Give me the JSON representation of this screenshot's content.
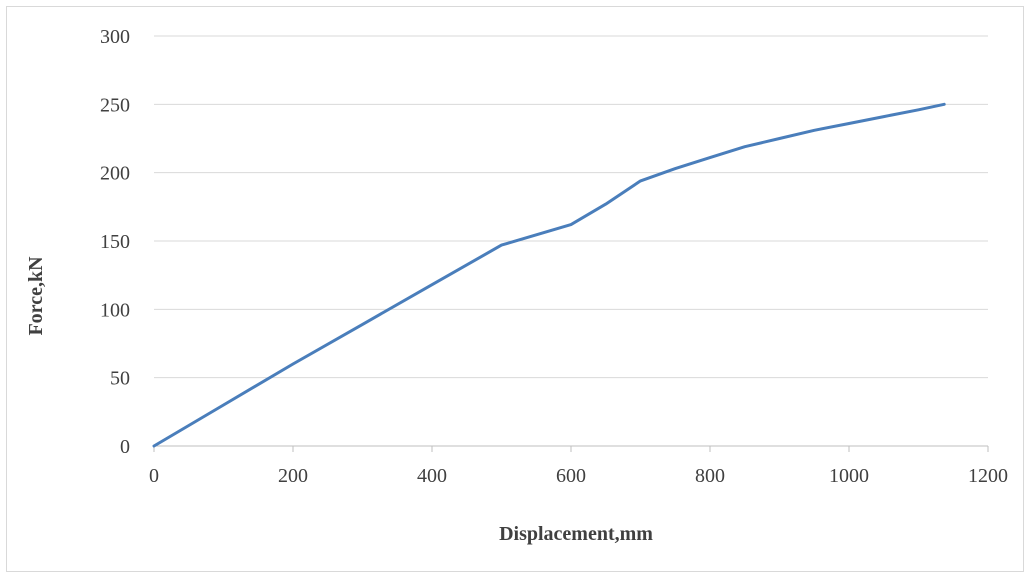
{
  "chart_data": {
    "type": "line",
    "title": "",
    "xlabel": "Displacement,mm",
    "ylabel": "Force,kN",
    "xlim": [
      0,
      1200
    ],
    "ylim": [
      0,
      300
    ],
    "x_ticks": [
      "0",
      "200",
      "400",
      "600",
      "800",
      "1000",
      "1200"
    ],
    "y_ticks": [
      "0",
      "50",
      "100",
      "150",
      "200",
      "250",
      "300"
    ],
    "grid": "horizontal",
    "legend": "none",
    "series": [
      {
        "color": "#4a7ebb",
        "x": [
          0,
          100,
          200,
          300,
          400,
          500,
          600,
          650,
          700,
          750,
          800,
          850,
          900,
          950,
          1000,
          1050,
          1100,
          1137
        ],
        "y": [
          0,
          30,
          60,
          89,
          118,
          147,
          162,
          177,
          194,
          203,
          211,
          219,
          225,
          231,
          236,
          241,
          246,
          250
        ]
      }
    ]
  },
  "colors": {
    "line": "#4a7ebb",
    "grid": "#d9d9d9",
    "axis": "#bfbfbf",
    "text": "#404040"
  }
}
